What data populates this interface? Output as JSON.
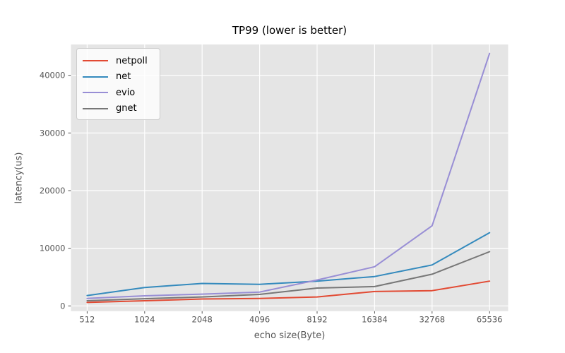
{
  "figure": {
    "title": "TP99 (lower is better)",
    "xlabel": "echo size(Byte)",
    "ylabel": "latency(us)"
  },
  "chart_data": {
    "type": "line",
    "title": "TP99 (lower is better)",
    "xlabel": "echo size(Byte)",
    "ylabel": "latency(us)",
    "categories": [
      "512",
      "1024",
      "2048",
      "4096",
      "8192",
      "16384",
      "32768",
      "65536"
    ],
    "y_ticks": [
      0,
      10000,
      20000,
      30000,
      40000
    ],
    "y_tick_labels": [
      "0",
      "10000",
      "20000",
      "30000",
      "40000"
    ],
    "ylim": [
      0,
      45400
    ],
    "grid": true,
    "legend_position": "upper left",
    "series": [
      {
        "name": "netpoll",
        "color": "#E24A33",
        "values": [
          600,
          900,
          1200,
          1300,
          1550,
          2500,
          2650,
          4300
        ]
      },
      {
        "name": "net",
        "color": "#348ABD",
        "values": [
          1800,
          3200,
          3900,
          3750,
          4300,
          5100,
          7100,
          12700
        ]
      },
      {
        "name": "evio",
        "color": "#988ED5",
        "values": [
          1300,
          1750,
          2050,
          2400,
          4500,
          6800,
          13900,
          43800
        ]
      },
      {
        "name": "gnet",
        "color": "#777777",
        "values": [
          900,
          1250,
          1550,
          2000,
          3100,
          3350,
          5500,
          9400
        ]
      }
    ],
    "style": {
      "plot_bg": "#E5E5E5",
      "grid_color": "#FFFFFF",
      "tick_color": "#555555",
      "label_color": "#555555",
      "title_color": "#000000"
    }
  }
}
